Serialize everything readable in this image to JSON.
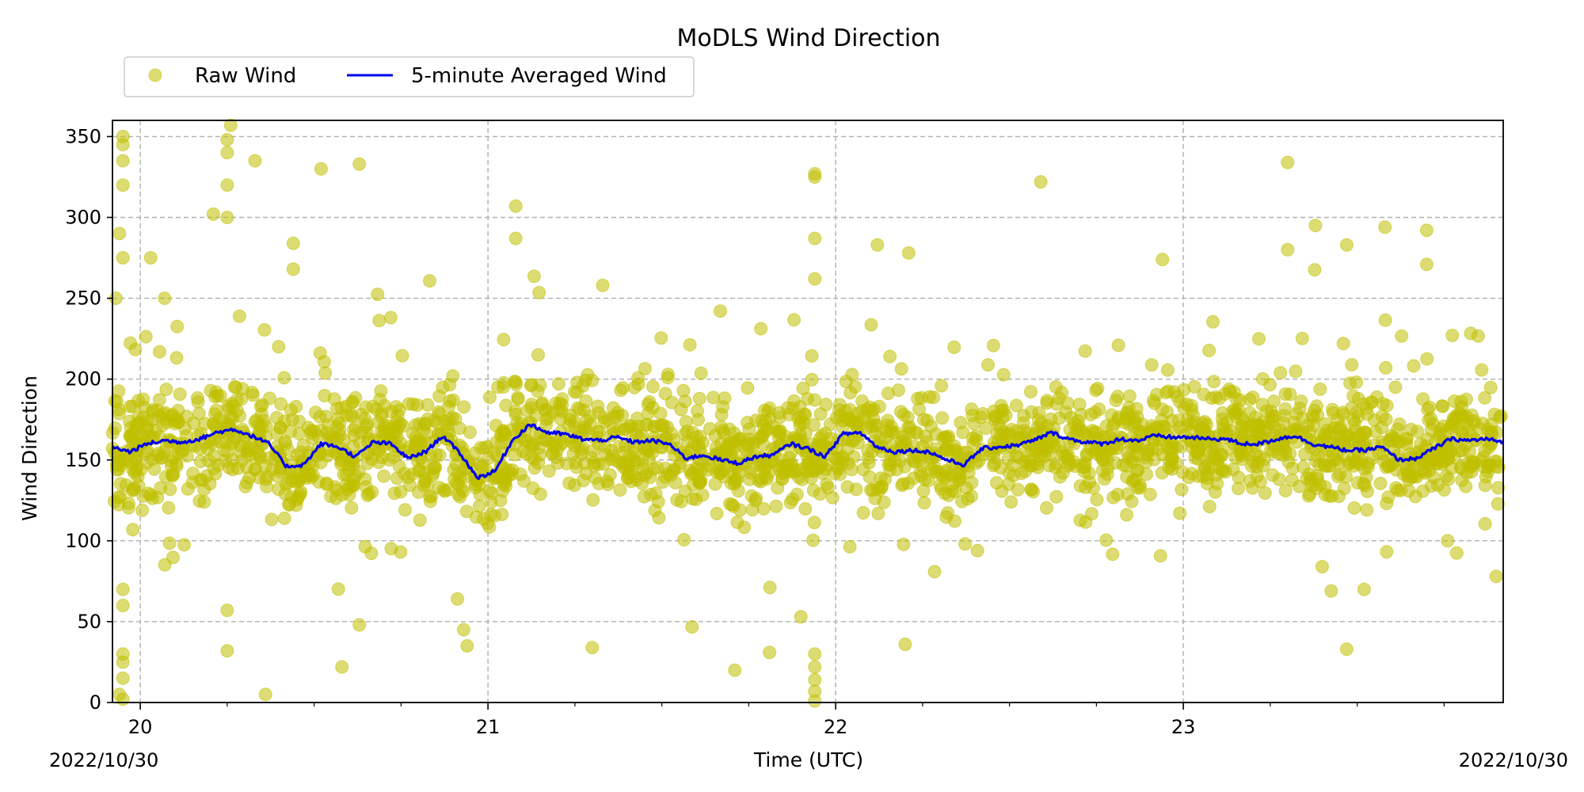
{
  "chart_data": {
    "type": "scatter",
    "title": "MoDLS Wind Direction",
    "xlabel": "Time (UTC)",
    "ylabel": "Wind Direction",
    "x_axis_kind": "hours UTC on 2022/10/30",
    "xlim": [
      19.92,
      23.92
    ],
    "ylim": [
      0,
      360
    ],
    "x_ticks": [
      20,
      21,
      22,
      23
    ],
    "x_tick_labels": [
      "20",
      "21",
      "22",
      "23"
    ],
    "y_ticks": [
      0,
      50,
      100,
      150,
      200,
      250,
      300,
      350
    ],
    "y_tick_labels": [
      "0",
      "50",
      "100",
      "150",
      "200",
      "250",
      "300",
      "350"
    ],
    "date_left": "2022/10/30",
    "date_right": "2022/10/30",
    "grid": true,
    "legend_position": "top-left, above plot",
    "series": [
      {
        "name": "Raw Wind",
        "kind": "scatter",
        "color": "#bfbf00",
        "opacity": 0.55,
        "typical_center": "follows 5-minute average",
        "typical_spread": 30,
        "outliers": [
          [
            19.95,
            350
          ],
          [
            19.95,
            345
          ],
          [
            19.95,
            335
          ],
          [
            19.95,
            320
          ],
          [
            19.94,
            290
          ],
          [
            19.95,
            275
          ],
          [
            19.93,
            250
          ],
          [
            19.95,
            70
          ],
          [
            19.95,
            60
          ],
          [
            19.95,
            30
          ],
          [
            19.95,
            25
          ],
          [
            19.95,
            15
          ],
          [
            19.94,
            5
          ],
          [
            19.95,
            2
          ],
          [
            20.26,
            357
          ],
          [
            20.25,
            348
          ],
          [
            20.25,
            340
          ],
          [
            20.25,
            320
          ],
          [
            20.21,
            302
          ],
          [
            20.25,
            300
          ],
          [
            20.33,
            335
          ],
          [
            20.52,
            330
          ],
          [
            20.63,
            333
          ],
          [
            20.03,
            275
          ],
          [
            20.07,
            250
          ],
          [
            20.44,
            284
          ],
          [
            20.44,
            268
          ],
          [
            20.36,
            5
          ],
          [
            20.25,
            57
          ],
          [
            20.25,
            32
          ],
          [
            20.58,
            22
          ],
          [
            20.63,
            48
          ],
          [
            20.93,
            45
          ],
          [
            20.94,
            35
          ],
          [
            21.08,
            307
          ],
          [
            21.08,
            287
          ],
          [
            21.33,
            258
          ],
          [
            21.3,
            34
          ],
          [
            21.71,
            20
          ],
          [
            21.81,
            31
          ],
          [
            21.9,
            53
          ],
          [
            21.94,
            327
          ],
          [
            21.94,
            325
          ],
          [
            21.94,
            287
          ],
          [
            21.94,
            262
          ],
          [
            21.94,
            30
          ],
          [
            21.94,
            22
          ],
          [
            21.94,
            14
          ],
          [
            21.94,
            7
          ],
          [
            21.94,
            1
          ],
          [
            22.12,
            283
          ],
          [
            22.21,
            278
          ],
          [
            22.2,
            36
          ],
          [
            22.59,
            322
          ],
          [
            22.94,
            274
          ],
          [
            23.3,
            334
          ],
          [
            23.3,
            280
          ],
          [
            23.38,
            295
          ],
          [
            23.47,
            283
          ],
          [
            23.58,
            294
          ],
          [
            23.47,
            33
          ],
          [
            23.7,
            292
          ],
          [
            23.7,
            271
          ],
          [
            23.52,
            70
          ],
          [
            23.76,
            100
          ],
          [
            23.9,
            78
          ]
        ]
      },
      {
        "name": "5-minute Averaged Wind",
        "kind": "line",
        "color": "#0000ee",
        "x": [
          19.92,
          19.97,
          20.02,
          20.07,
          20.12,
          20.17,
          20.22,
          20.27,
          20.32,
          20.37,
          20.42,
          20.47,
          20.52,
          20.57,
          20.62,
          20.67,
          20.72,
          20.77,
          20.82,
          20.87,
          20.92,
          20.97,
          21.02,
          21.07,
          21.12,
          21.17,
          21.22,
          21.27,
          21.32,
          21.37,
          21.42,
          21.47,
          21.52,
          21.57,
          21.62,
          21.67,
          21.72,
          21.77,
          21.82,
          21.87,
          21.92,
          21.97,
          22.02,
          22.07,
          22.12,
          22.17,
          22.22,
          22.27,
          22.32,
          22.37,
          22.42,
          22.47,
          22.52,
          22.57,
          22.62,
          22.67,
          22.72,
          22.77,
          22.82,
          22.87,
          22.92,
          22.97,
          23.02,
          23.07,
          23.12,
          23.17,
          23.22,
          23.27,
          23.32,
          23.37,
          23.42,
          23.47,
          23.52,
          23.57,
          23.62,
          23.67,
          23.72,
          23.77,
          23.82,
          23.87,
          23.92
        ],
        "values": [
          158,
          155,
          160,
          162,
          161,
          163,
          167,
          169,
          165,
          160,
          146,
          147,
          160,
          158,
          152,
          161,
          160,
          151,
          155,
          165,
          154,
          139,
          143,
          162,
          172,
          167,
          166,
          163,
          162,
          164,
          161,
          162,
          160,
          151,
          153,
          150,
          148,
          152,
          153,
          160,
          157,
          152,
          166,
          167,
          158,
          155,
          156,
          155,
          150,
          147,
          157,
          158,
          159,
          162,
          167,
          163,
          161,
          160,
          163,
          162,
          165,
          164,
          164,
          163,
          163,
          160,
          160,
          163,
          165,
          160,
          158,
          156,
          156,
          158,
          150,
          151,
          157,
          163,
          162,
          163,
          161
        ]
      }
    ]
  }
}
